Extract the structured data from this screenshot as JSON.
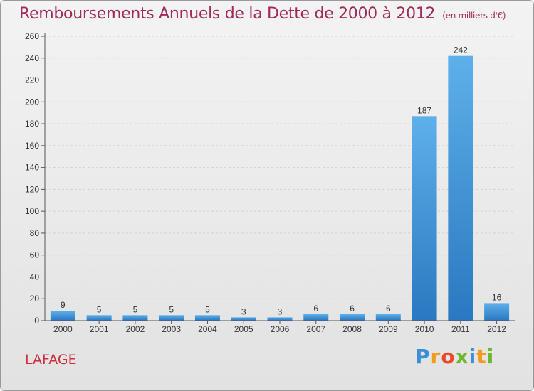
{
  "header": {
    "title": "Remboursements Annuels de la Dette de 2000 à 2012",
    "unit": "(en milliers d'€)"
  },
  "footer": {
    "commune": "LAFAGE"
  },
  "logo": {
    "letters": [
      "P",
      "r",
      "o",
      "x",
      "i",
      "t",
      "i"
    ],
    "colors": [
      "#3a8fd6",
      "#f39a1e",
      "#e84a2a",
      "#6ab82c",
      "#3a8fd6",
      "#f39a1e",
      "#6ab82c"
    ]
  },
  "colors": {
    "bar_light": "#5eb0ea",
    "bar_dark": "#2a78c0",
    "grid": "#d2d2d2",
    "axis": "#555555",
    "title": "#a02a5a",
    "commune": "#c8323e"
  },
  "chart_data": {
    "type": "bar",
    "categories": [
      "2000",
      "2001",
      "2002",
      "2003",
      "2004",
      "2005",
      "2006",
      "2007",
      "2008",
      "2009",
      "2010",
      "2011",
      "2012"
    ],
    "values": [
      9,
      5,
      5,
      5,
      5,
      3,
      3,
      6,
      6,
      6,
      187,
      242,
      16
    ],
    "ylim": [
      0,
      260
    ],
    "yticks": [
      0,
      20,
      40,
      60,
      80,
      100,
      120,
      140,
      160,
      180,
      200,
      220,
      240,
      260
    ],
    "grid": true,
    "legend": "none"
  }
}
